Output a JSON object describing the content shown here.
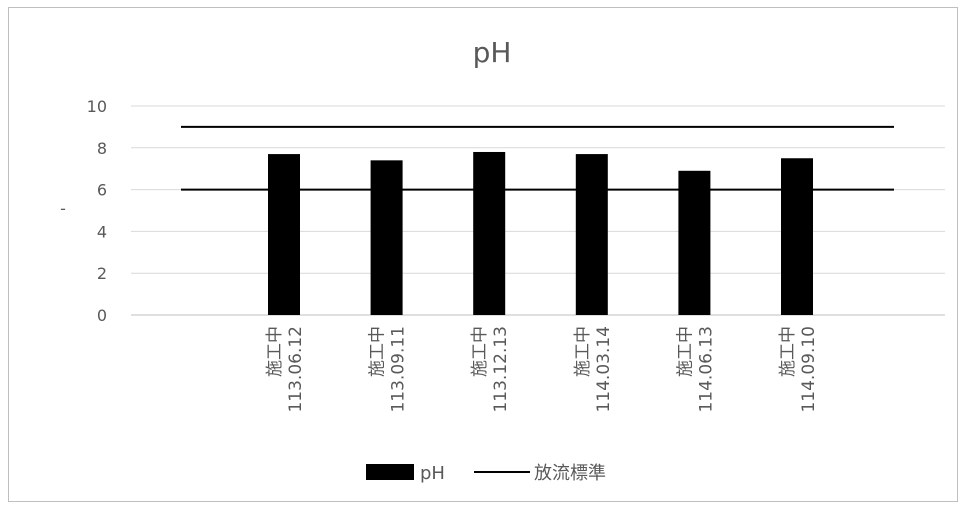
{
  "chart_data": {
    "type": "bar",
    "title": "pH",
    "ylabel": "-",
    "xlabel": "",
    "ylim": [
      0,
      10
    ],
    "yticks": [
      0,
      2,
      4,
      6,
      8,
      10
    ],
    "categories": [
      [
        "施工中",
        "113.06.12"
      ],
      [
        "施工中",
        "113.09.11"
      ],
      [
        "施工中",
        "113.12.13"
      ],
      [
        "施工中",
        "114.03.14"
      ],
      [
        "施工中",
        "114.06.13"
      ],
      [
        "施工中",
        "114.09.10"
      ]
    ],
    "series": [
      {
        "name": "pH",
        "type": "bar",
        "color": "#000000",
        "values": [
          7.7,
          7.4,
          7.8,
          7.7,
          6.9,
          7.5
        ]
      }
    ],
    "reference_lines": {
      "name": "放流標準",
      "color": "#000000",
      "values": [
        6,
        9
      ]
    },
    "legend": {
      "position": "bottom",
      "entries": [
        "pH",
        "放流標準"
      ]
    },
    "grid": true
  }
}
